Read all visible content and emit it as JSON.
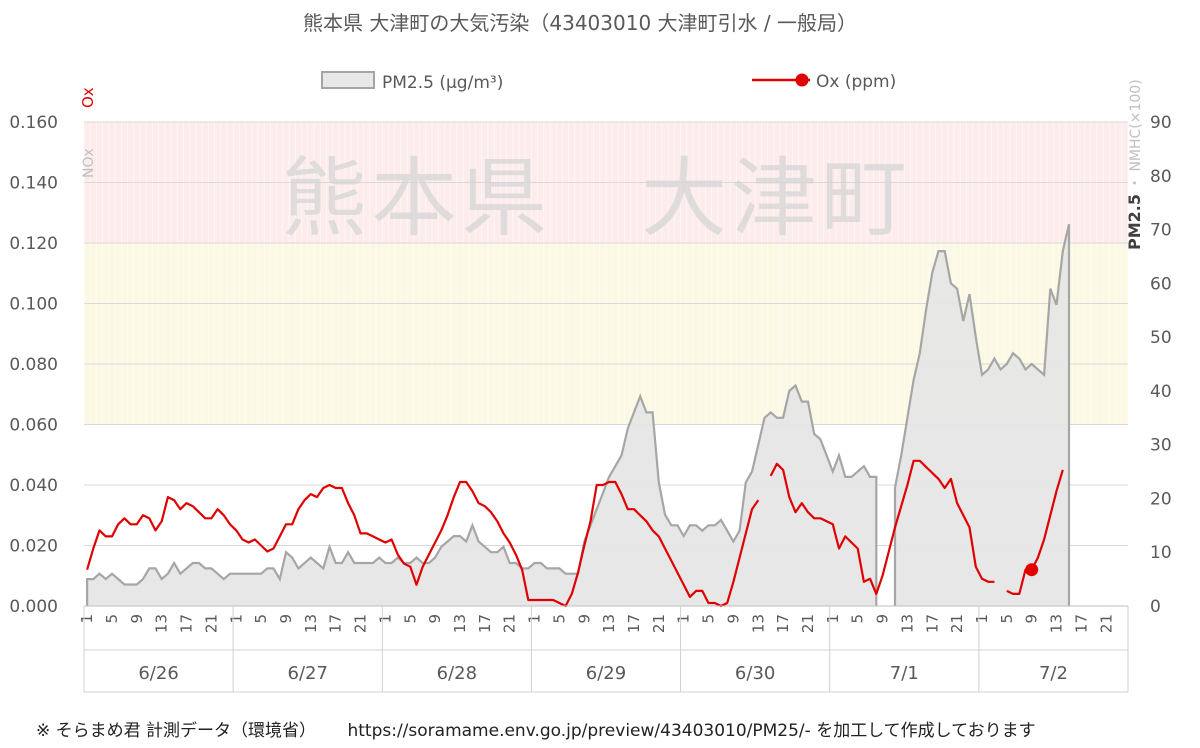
{
  "title": "熊本県 大津町の大気汚染（43403010 大津町引水 / 一般局）",
  "watermark": "熊本県　大津町",
  "footer": {
    "source": "※ そらまめ君 計測データ（環境省）",
    "url_note": "https://soramame.env.go.jp/preview/43403010/PM25/- を加工して作成しております"
  },
  "chart_data": {
    "type": "line",
    "title": "熊本県 大津町の大気汚染（43403010 大津町引水 / 一般局）",
    "legend": [
      {
        "name": "PM2.5 (μg/m³)",
        "kind": "area",
        "color": "#a6a6a6",
        "fill": "#e8e8e8"
      },
      {
        "name": "Ox (ppm)",
        "kind": "line",
        "color": "#e00000"
      }
    ],
    "legend_position": "top",
    "left_axis": {
      "labels_colored": [
        "Ox"
      ],
      "labels_gray": [
        "NOx"
      ],
      "ylim": [
        0,
        0.16
      ],
      "ticks": [
        "0.000",
        "0.020",
        "0.040",
        "0.060",
        "0.080",
        "0.100",
        "0.120",
        "0.140",
        "0.160"
      ]
    },
    "right_axis": {
      "label_main": "PM2.5",
      "label_secondary": "・ NMHC(×100)",
      "ylim": [
        0,
        90
      ],
      "ticks": [
        "0",
        "10",
        "20",
        "30",
        "40",
        "50",
        "60",
        "70",
        "80",
        "90"
      ]
    },
    "bands": [
      {
        "from": 0.06,
        "to": 0.12,
        "color": "#fbf8e4"
      },
      {
        "from": 0.12,
        "to": 0.16,
        "color": "#fdecec"
      }
    ],
    "x": {
      "hours_per_day": 24,
      "hour_tick_labels": [
        "1",
        "5",
        "9",
        "13",
        "17",
        "21"
      ],
      "dates": [
        "6/26",
        "6/27",
        "6/28",
        "6/29",
        "6/30",
        "7/1",
        "7/2"
      ]
    },
    "series": [
      {
        "name": "PM2.5 (μg/m³)",
        "axis": "right",
        "x_start_hour": 1,
        "values": [
          5,
          5,
          6,
          5,
          6,
          5,
          4,
          4,
          4,
          5,
          7,
          7,
          5,
          6,
          8,
          6,
          7,
          8,
          8,
          7,
          7,
          6,
          5,
          6,
          6,
          6,
          6,
          6,
          6,
          7,
          7,
          5,
          10,
          9,
          7,
          8,
          9,
          8,
          7,
          11,
          8,
          8,
          10,
          8,
          8,
          8,
          8,
          9,
          8,
          8,
          9,
          8,
          8,
          9,
          8,
          8,
          9,
          11,
          12,
          13,
          13,
          12,
          15,
          12,
          11,
          10,
          10,
          11,
          8,
          8,
          7,
          7,
          8,
          8,
          7,
          7,
          7,
          6,
          6,
          6,
          12,
          15,
          18,
          21,
          24,
          26,
          28,
          33,
          36,
          39,
          36,
          36,
          23,
          17,
          15,
          15,
          13,
          15,
          15,
          14,
          15,
          15,
          16,
          14,
          12,
          14,
          23,
          25,
          30,
          35,
          36,
          35,
          35,
          40,
          41,
          38,
          38,
          32,
          31,
          28,
          25,
          28,
          24,
          24,
          25,
          26,
          24,
          24,
          null,
          null,
          22,
          28,
          35,
          42,
          47,
          55,
          62,
          66,
          66,
          60,
          59,
          53,
          58,
          50,
          43,
          44,
          46,
          44,
          45,
          47,
          46,
          44,
          45,
          44,
          43,
          59,
          56,
          66,
          71
        ]
      },
      {
        "name": "Ox (ppm)",
        "axis": "left",
        "x_start_hour": 1,
        "values": [
          0.012,
          0.019,
          0.025,
          0.023,
          0.023,
          0.027,
          0.029,
          0.027,
          0.027,
          0.03,
          0.029,
          0.025,
          0.028,
          0.036,
          0.035,
          0.032,
          0.034,
          0.033,
          0.031,
          0.029,
          0.029,
          0.032,
          0.03,
          0.027,
          0.025,
          0.022,
          0.021,
          0.022,
          0.02,
          0.018,
          0.019,
          0.023,
          0.027,
          0.027,
          0.032,
          0.035,
          0.037,
          0.036,
          0.039,
          0.04,
          0.039,
          0.039,
          0.034,
          0.03,
          0.024,
          0.024,
          0.023,
          0.022,
          0.021,
          0.022,
          0.017,
          0.014,
          0.013,
          0.007,
          0.013,
          0.017,
          0.021,
          0.025,
          0.03,
          0.036,
          0.041,
          0.041,
          0.038,
          0.034,
          0.033,
          0.031,
          0.028,
          0.024,
          0.021,
          0.017,
          0.012,
          0.002,
          0.002,
          0.002,
          0.002,
          0.002,
          0.001,
          0.0,
          0.004,
          0.011,
          0.02,
          0.028,
          0.04,
          0.04,
          0.041,
          0.041,
          0.037,
          0.032,
          0.032,
          0.03,
          0.028,
          0.025,
          0.023,
          0.019,
          0.015,
          0.011,
          0.007,
          0.003,
          0.005,
          0.005,
          0.001,
          0.001,
          0.0,
          0.001,
          0.008,
          0.016,
          0.024,
          0.032,
          0.035,
          null,
          0.043,
          0.047,
          0.045,
          0.036,
          0.031,
          0.034,
          0.031,
          0.029,
          0.029,
          0.028,
          0.027,
          0.019,
          0.023,
          0.021,
          0.019,
          0.008,
          0.009,
          0.004,
          0.01,
          0.018,
          0.026,
          0.033,
          0.04,
          0.048,
          0.048,
          0.046,
          0.044,
          0.042,
          0.039,
          0.042,
          0.034,
          0.03,
          0.026,
          0.013,
          0.009,
          0.008,
          0.008,
          null,
          0.005,
          0.004,
          0.004,
          0.012,
          0.012,
          0.016,
          0.022,
          0.03,
          0.038,
          0.045
        ],
        "markers_at_hours": [
          153,
          175,
          185,
          192
        ]
      }
    ]
  }
}
